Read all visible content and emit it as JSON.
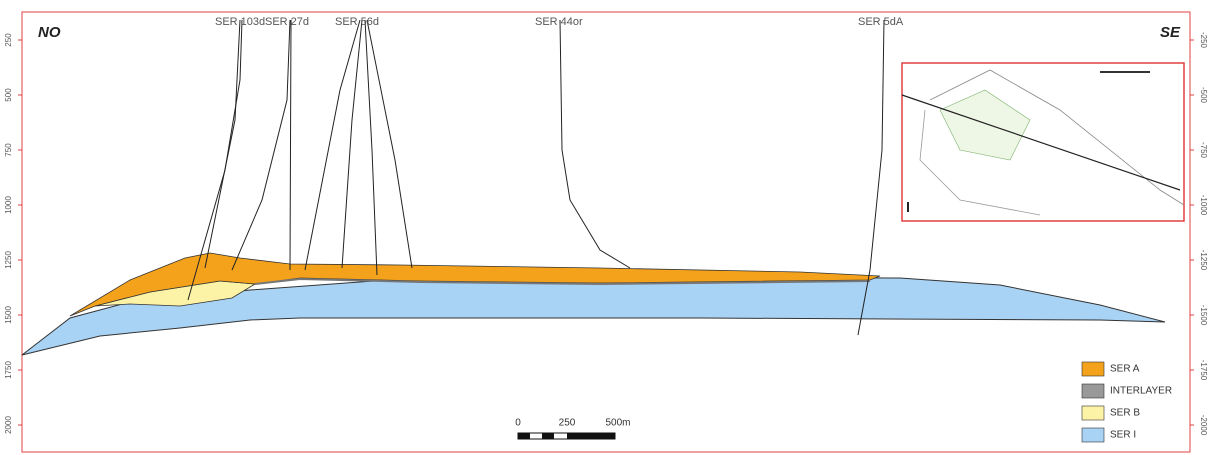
{
  "section": {
    "left_direction": "NO",
    "right_direction": "SE",
    "wells": [
      "SER 103d",
      "SER 27d",
      "SER 56d",
      "SER 44or",
      "SER 5dA"
    ],
    "left_axis": [
      250,
      500,
      750,
      1000,
      1250,
      1500,
      1750,
      2000
    ],
    "right_axis": [
      -250,
      -500,
      -750,
      -1000,
      -1250,
      -1500,
      -1750,
      -2000
    ]
  },
  "legend": [
    "SER A",
    "INTERLAYER",
    "SER B",
    "SER I"
  ],
  "scale_bar": [
    "0",
    "250",
    "500m"
  ]
}
